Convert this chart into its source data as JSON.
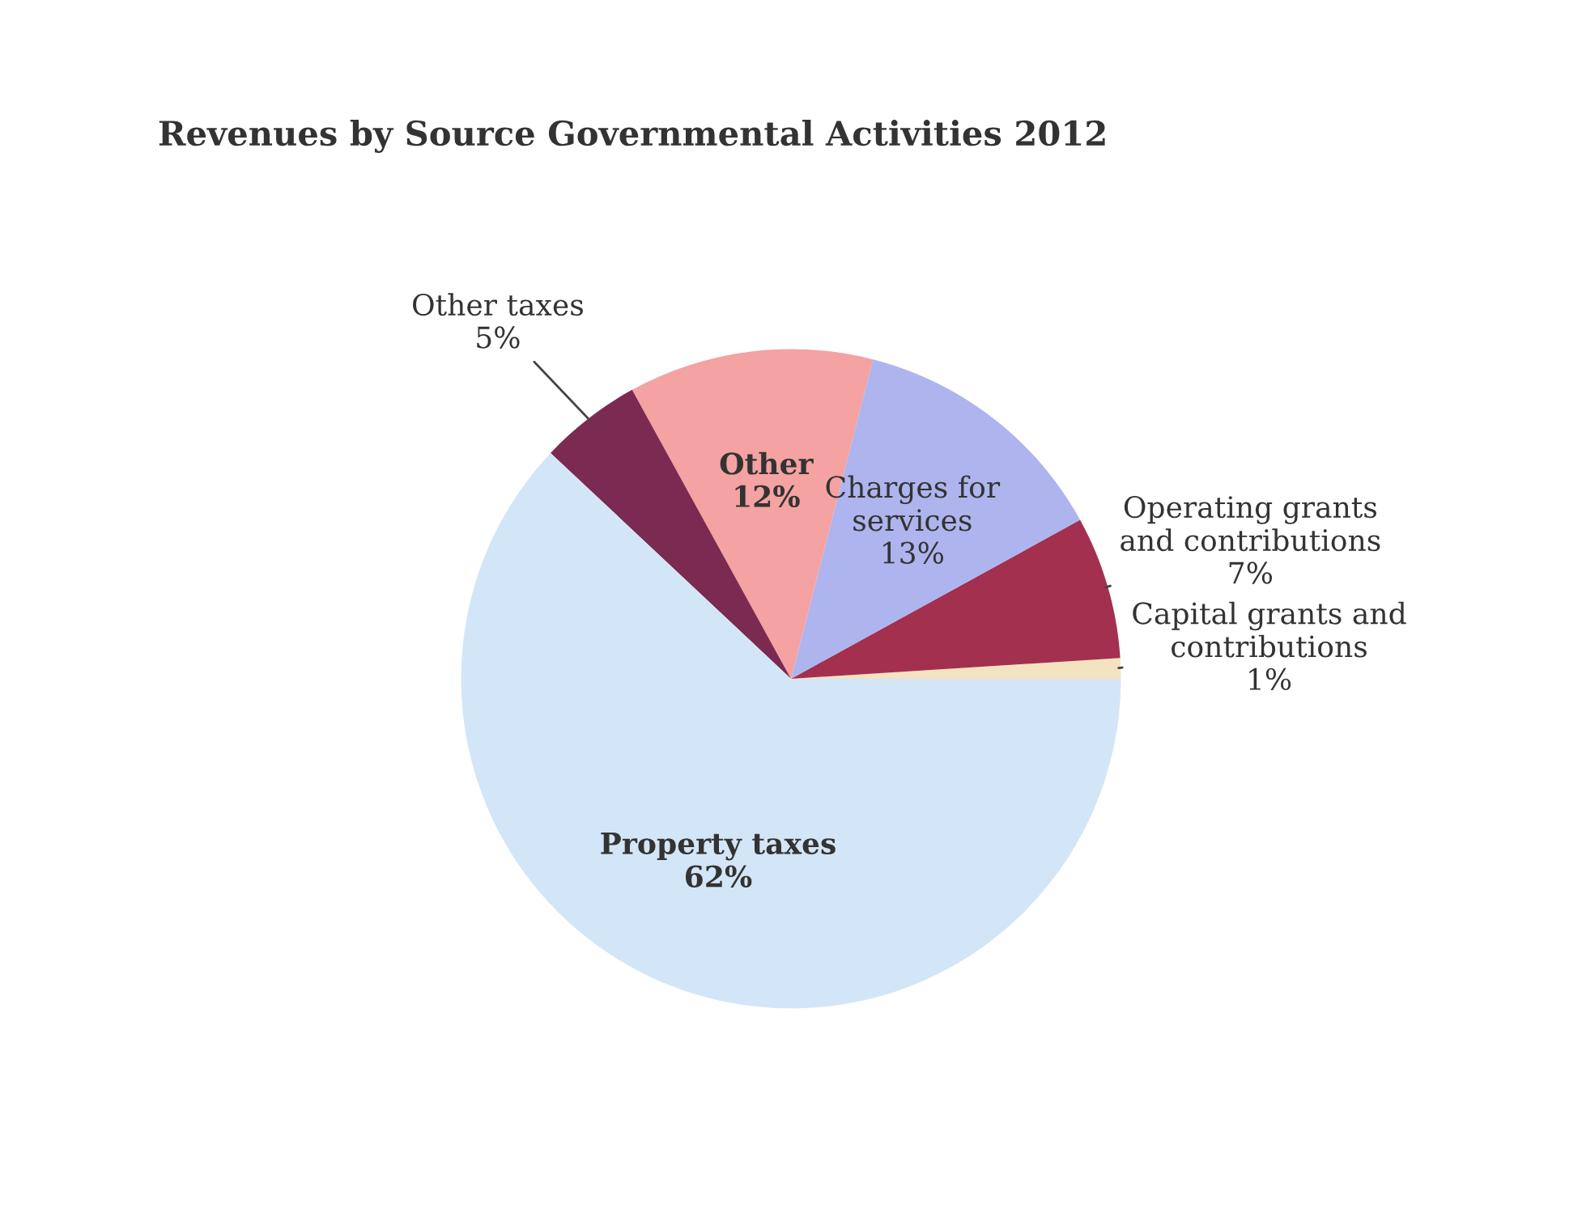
{
  "chart_data": {
    "type": "pie",
    "title": "Revenues by Source Governmental Activities 2012",
    "categories": [
      "Capital grants and\ncontributions",
      "Operating grants\nand contributions",
      "Charges for\nservices",
      "Other",
      "Other taxes",
      "Property taxes"
    ],
    "values": [
      1,
      7,
      13,
      12,
      5,
      62
    ],
    "value_labels": [
      "1%",
      "7%",
      "13%",
      "12%",
      "5%",
      "62%"
    ],
    "colors": [
      "#f3e3c0",
      "#a3304f",
      "#aeb4ee",
      "#f4a2a2",
      "#7b2a52",
      "#d3e6f7"
    ],
    "legend": false
  }
}
